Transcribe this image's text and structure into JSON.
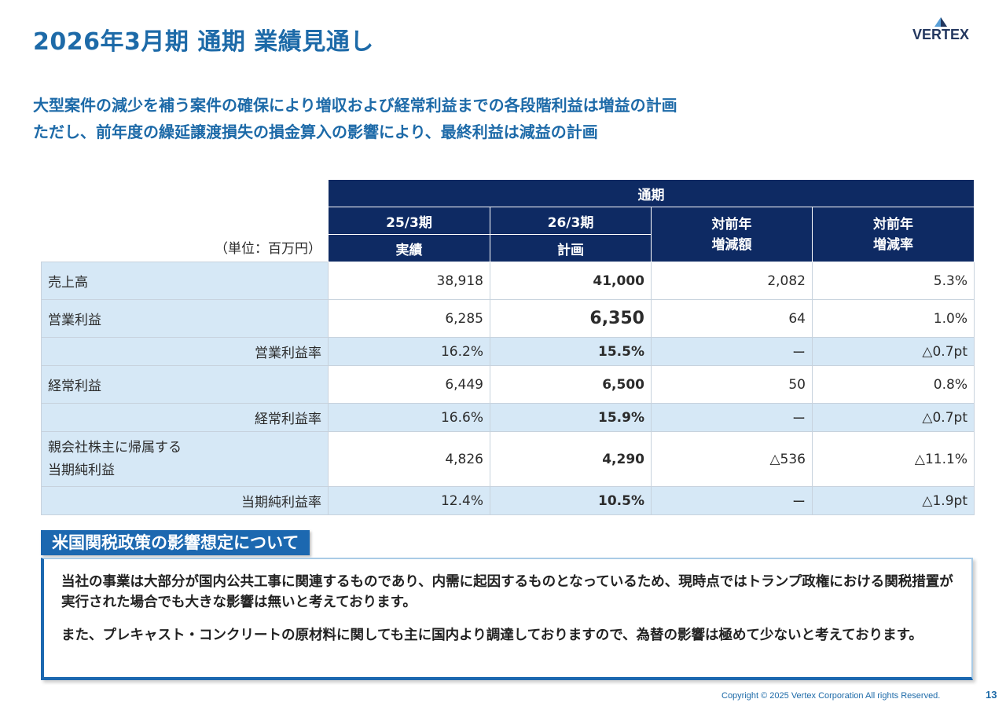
{
  "header": {
    "title": "2026年3月期 通期 業績見通し",
    "logo_text": "VERTEX"
  },
  "summary": {
    "line1": "大型案件の減少を補う案件の確保により増収および経常利益までの各段階利益は増益の計画",
    "line2": "ただし、前年度の繰延譲渡損失の損金算入の影響により、最終利益は減益の計画"
  },
  "table": {
    "unit": "（単位：百万円）",
    "header_top": "通期",
    "col_prev_period": "25/3期",
    "col_prev_type": "実績",
    "col_plan_period": "26/3期",
    "col_plan_type": "計画",
    "col_diff": "対前年\n増減額",
    "col_rate": "対前年\n増減率",
    "rows": [
      {
        "label": "売上高",
        "prev": "38,918",
        "plan": "41,000",
        "diff": "2,082",
        "rate": "5.3%"
      },
      {
        "label": "営業利益",
        "prev": "6,285",
        "plan": "6,350",
        "diff": "64",
        "rate": "1.0%"
      },
      {
        "label": "営業利益率",
        "prev": "16.2%",
        "plan": "15.5%",
        "diff": "ー",
        "rate": "△0.7pt"
      },
      {
        "label": "経常利益",
        "prev": "6,449",
        "plan": "6,500",
        "diff": "50",
        "rate": "0.8%"
      },
      {
        "label": "経常利益率",
        "prev": "16.6%",
        "plan": "15.9%",
        "diff": "ー",
        "rate": "△0.7pt"
      },
      {
        "label": "親会社株主に帰属する\n当期純利益",
        "prev": "4,826",
        "plan": "4,290",
        "diff": "△536",
        "rate": "△11.1%"
      },
      {
        "label": "当期純利益率",
        "prev": "12.4%",
        "plan": "10.5%",
        "diff": "ー",
        "rate": "△1.9pt"
      }
    ]
  },
  "tariff_box": {
    "title": "米国関税政策の影響想定について",
    "para1": "当社の事業は大部分が国内公共工事に関連するものであり、内需に起因するものとなっているため、現時点ではトランプ政権における関税措置が実行された場合でも大きな影響は無いと考えております。",
    "para2": "また、プレキャスト・コンクリートの原材料に関しても主に国内より調達しておりますので、為替の影響は極めて少ないと考えております。"
  },
  "footer": {
    "copyright": "Copyright © 2025 Vertex Corporation All rights Reserved.",
    "page_number": "13"
  },
  "colors": {
    "title_blue": "#1d6aa8",
    "header_navy": "#0e2a63",
    "label_bg": "#d6e8f6",
    "box_blue": "#1c68b0"
  }
}
